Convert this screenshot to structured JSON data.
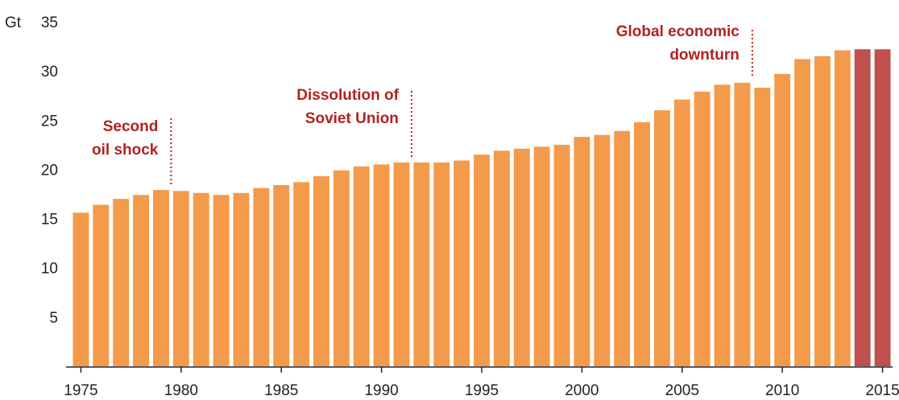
{
  "chart_data": {
    "type": "bar",
    "title": "",
    "ylabel": "Gt",
    "xlabel": "",
    "ylim": [
      0,
      35
    ],
    "yticks": [
      5,
      10,
      15,
      20,
      25,
      30,
      35
    ],
    "xticks": [
      1975,
      1980,
      1985,
      1990,
      1995,
      2000,
      2005,
      2010,
      2015
    ],
    "grid": false,
    "legend": "none",
    "categories": [
      1975,
      1976,
      1977,
      1978,
      1979,
      1980,
      1981,
      1982,
      1983,
      1984,
      1985,
      1986,
      1987,
      1988,
      1989,
      1990,
      1991,
      1992,
      1993,
      1994,
      1995,
      1996,
      1997,
      1998,
      1999,
      2000,
      2001,
      2002,
      2003,
      2004,
      2005,
      2006,
      2007,
      2008,
      2009,
      2010,
      2011,
      2012,
      2013,
      2014,
      2015
    ],
    "values": [
      15.6,
      16.4,
      17.0,
      17.4,
      17.9,
      17.8,
      17.6,
      17.4,
      17.6,
      18.1,
      18.4,
      18.7,
      19.3,
      19.9,
      20.3,
      20.5,
      20.7,
      20.7,
      20.7,
      20.9,
      21.5,
      21.9,
      22.1,
      22.3,
      22.5,
      23.3,
      23.5,
      23.9,
      24.8,
      26.0,
      27.1,
      27.9,
      28.6,
      28.8,
      28.3,
      29.7,
      31.2,
      31.5,
      32.1,
      32.2,
      32.2
    ],
    "highlight_from": 2014,
    "colors": {
      "bar": "#F39B4B",
      "bar_highlight": "#C0504D",
      "annotation": "#B22222",
      "axis": "#222222"
    },
    "annotations": [
      {
        "lines": [
          "Second",
          "oil shock"
        ],
        "year": 1979
      },
      {
        "lines": [
          "Dissolution of",
          "Soviet Union"
        ],
        "year": 1991
      },
      {
        "lines": [
          "Global economic",
          "downturn"
        ],
        "year": 2008
      }
    ]
  }
}
